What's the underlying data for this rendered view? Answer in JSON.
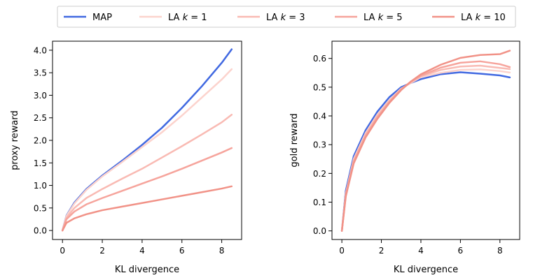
{
  "chart_data": [
    {
      "type": "line",
      "id": "proxy",
      "title": "",
      "xlabel": "KL divergence",
      "ylabel": "proxy reward",
      "xlim": [
        -0.5,
        9.0
      ],
      "ylim": [
        -0.2,
        4.2
      ],
      "xticks": [
        0,
        2,
        4,
        6,
        8
      ],
      "yticks": [
        0.0,
        0.5,
        1.0,
        1.5,
        2.0,
        2.5,
        3.0,
        3.5,
        4.0
      ],
      "ytick_labels": [
        "0.0",
        "0.5",
        "1.0",
        "1.5",
        "2.0",
        "2.5",
        "3.0",
        "3.5",
        "4.0"
      ],
      "xtick_labels": [
        "0",
        "2",
        "4",
        "6",
        "8"
      ],
      "grid": false,
      "series": [
        {
          "name": "MAP",
          "color": "#4169e1",
          "x": [
            0,
            0.2,
            0.6,
            1.2,
            2,
            3,
            4,
            5,
            6,
            7,
            8,
            8.5
          ],
          "y": [
            0,
            0.33,
            0.62,
            0.92,
            1.22,
            1.55,
            1.9,
            2.28,
            2.72,
            3.2,
            3.72,
            4.02
          ]
        },
        {
          "name": "LA k=1",
          "color": "#fcd3cd",
          "x": [
            0,
            0.2,
            0.6,
            1.2,
            2,
            3,
            4,
            5,
            6,
            7,
            8,
            8.5
          ],
          "y": [
            0,
            0.32,
            0.6,
            0.9,
            1.2,
            1.52,
            1.85,
            2.18,
            2.55,
            2.95,
            3.35,
            3.58
          ]
        },
        {
          "name": "LA k=3",
          "color": "#f9bab3",
          "x": [
            0,
            0.2,
            0.6,
            1.2,
            2,
            3,
            4,
            5,
            6,
            7,
            8,
            8.5
          ],
          "y": [
            0,
            0.28,
            0.5,
            0.72,
            0.92,
            1.15,
            1.37,
            1.62,
            1.87,
            2.13,
            2.4,
            2.57
          ]
        },
        {
          "name": "LA k=5",
          "color": "#f6a49c",
          "x": [
            0,
            0.2,
            0.6,
            1.2,
            2,
            3,
            4,
            5,
            6,
            7,
            8,
            8.5
          ],
          "y": [
            0,
            0.25,
            0.42,
            0.58,
            0.72,
            0.88,
            1.04,
            1.2,
            1.37,
            1.55,
            1.73,
            1.83
          ]
        },
        {
          "name": "LA k=10",
          "color": "#f19287",
          "x": [
            0,
            0.2,
            0.6,
            1.2,
            2,
            3,
            4,
            5,
            6,
            7,
            8,
            8.5
          ],
          "y": [
            0,
            0.17,
            0.27,
            0.36,
            0.45,
            0.53,
            0.61,
            0.69,
            0.77,
            0.85,
            0.93,
            0.98
          ]
        }
      ]
    },
    {
      "type": "line",
      "id": "gold",
      "title": "",
      "xlabel": "KL divergence",
      "ylabel": "gold reward",
      "xlim": [
        -0.5,
        9.0
      ],
      "ylim": [
        -0.03,
        0.66
      ],
      "xticks": [
        0,
        2,
        4,
        6,
        8
      ],
      "yticks": [
        0.0,
        0.1,
        0.2,
        0.3,
        0.4,
        0.5,
        0.6
      ],
      "ytick_labels": [
        "0.0",
        "0.1",
        "0.2",
        "0.3",
        "0.4",
        "0.5",
        "0.6"
      ],
      "xtick_labels": [
        "0",
        "2",
        "4",
        "6",
        "8"
      ],
      "grid": false,
      "series": [
        {
          "name": "MAP",
          "color": "#4169e1",
          "x": [
            0,
            0.2,
            0.6,
            1.2,
            1.8,
            2.4,
            3,
            3.5,
            4,
            5,
            6,
            7,
            8,
            8.5
          ],
          "y": [
            0,
            0.14,
            0.26,
            0.35,
            0.415,
            0.465,
            0.5,
            0.515,
            0.528,
            0.545,
            0.552,
            0.547,
            0.541,
            0.534
          ]
        },
        {
          "name": "LA k=1",
          "color": "#fcd3cd",
          "x": [
            0,
            0.2,
            0.6,
            1.2,
            1.8,
            2.4,
            3,
            3.5,
            4,
            5,
            6,
            7,
            8,
            8.5
          ],
          "y": [
            0,
            0.13,
            0.25,
            0.34,
            0.405,
            0.455,
            0.495,
            0.515,
            0.535,
            0.55,
            0.56,
            0.562,
            0.556,
            0.551
          ]
        },
        {
          "name": "LA k=3",
          "color": "#f9bab3",
          "x": [
            0,
            0.2,
            0.6,
            1.2,
            1.8,
            2.4,
            3,
            3.5,
            4,
            5,
            6,
            7,
            8,
            8.5
          ],
          "y": [
            0,
            0.13,
            0.245,
            0.335,
            0.4,
            0.452,
            0.493,
            0.517,
            0.538,
            0.56,
            0.572,
            0.575,
            0.567,
            0.563
          ]
        },
        {
          "name": "LA k=5",
          "color": "#f6a49c",
          "x": [
            0,
            0.2,
            0.6,
            1.2,
            1.8,
            2.4,
            3,
            3.5,
            4,
            5,
            6,
            7,
            8,
            8.5
          ],
          "y": [
            0,
            0.125,
            0.24,
            0.33,
            0.395,
            0.448,
            0.492,
            0.52,
            0.54,
            0.568,
            0.585,
            0.59,
            0.58,
            0.57
          ]
        },
        {
          "name": "LA k=10",
          "color": "#f19287",
          "x": [
            0,
            0.2,
            0.6,
            1.2,
            1.8,
            2.4,
            3,
            3.5,
            4,
            5,
            6,
            7,
            8,
            8.5
          ],
          "y": [
            0,
            0.12,
            0.235,
            0.325,
            0.39,
            0.445,
            0.49,
            0.52,
            0.545,
            0.578,
            0.602,
            0.612,
            0.615,
            0.627
          ]
        }
      ]
    }
  ],
  "legend": {
    "placement": "top-center",
    "entries": [
      {
        "label": "MAP",
        "color": "#4169e1"
      },
      {
        "label": "LA",
        "k": "k",
        "eq": " = 1",
        "color": "#fcd3cd"
      },
      {
        "label": "LA",
        "k": "k",
        "eq": " = 3",
        "color": "#f9bab3"
      },
      {
        "label": "LA",
        "k": "k",
        "eq": " = 5",
        "color": "#f6a49c"
      },
      {
        "label": "LA",
        "k": "k",
        "eq": " = 10",
        "color": "#f19287"
      }
    ]
  }
}
